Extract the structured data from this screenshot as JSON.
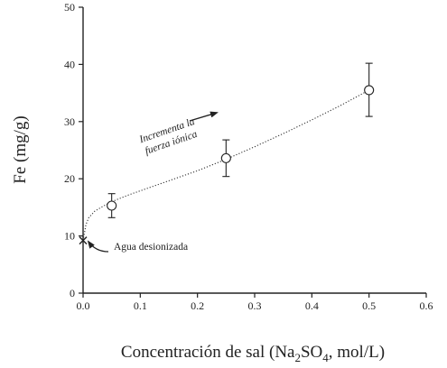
{
  "chart_data": {
    "type": "scatter",
    "title": "",
    "xlabel": "Concentración de sal (Na2SO4, mol/L)",
    "xlabel_parts": {
      "prefix": "Concentración de sal (Na",
      "sub1": "2",
      "mid": "SO",
      "sub2": "4",
      "suffix": ", mol/L)"
    },
    "ylabel": "Fe (mg/g)",
    "xlim": [
      0.0,
      0.6
    ],
    "ylim": [
      0,
      50
    ],
    "x_ticks": [
      "0.0",
      "0.1",
      "0.2",
      "0.3",
      "0.4",
      "0.5",
      "0.6"
    ],
    "y_ticks": [
      "0",
      "10",
      "20",
      "30",
      "40",
      "50"
    ],
    "grid": false,
    "series": [
      {
        "marker": "open-circle",
        "points": [
          {
            "x": 0.05,
            "y": 15.3,
            "err_low": 13.2,
            "err_high": 17.4
          },
          {
            "x": 0.25,
            "y": 23.6,
            "err_low": 20.4,
            "err_high": 26.8
          },
          {
            "x": 0.5,
            "y": 35.5,
            "err_low": 30.9,
            "err_high": 40.2
          }
        ]
      },
      {
        "marker": "x",
        "points": [
          {
            "x": 0.0,
            "y": 9.2
          }
        ]
      }
    ],
    "trend_line": {
      "style": "dotted",
      "points": [
        {
          "x": 0.0,
          "y": 9.2
        },
        {
          "x": 0.005,
          "y": 12.0
        },
        {
          "x": 0.01,
          "y": 13.2
        },
        {
          "x": 0.02,
          "y": 14.3
        },
        {
          "x": 0.035,
          "y": 15.2
        },
        {
          "x": 0.05,
          "y": 16.0
        },
        {
          "x": 0.08,
          "y": 17.2
        },
        {
          "x": 0.12,
          "y": 18.6
        },
        {
          "x": 0.16,
          "y": 20.0
        },
        {
          "x": 0.2,
          "y": 21.4
        },
        {
          "x": 0.25,
          "y": 23.4
        },
        {
          "x": 0.3,
          "y": 25.6
        },
        {
          "x": 0.35,
          "y": 27.9
        },
        {
          "x": 0.4,
          "y": 30.3
        },
        {
          "x": 0.45,
          "y": 32.8
        },
        {
          "x": 0.5,
          "y": 35.5
        }
      ]
    },
    "annotations": {
      "ionic_strength": [
        "Incrementa la",
        "fuerza iónica"
      ],
      "deionized_water": "Agua desionizada"
    }
  }
}
